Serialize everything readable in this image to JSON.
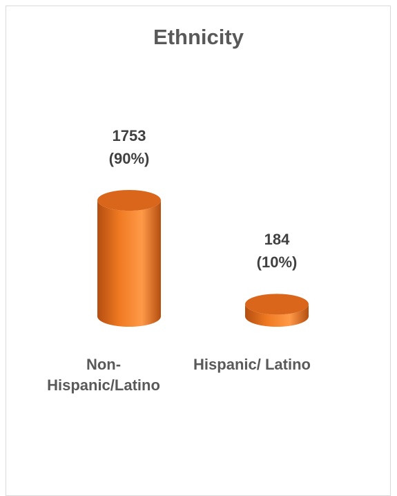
{
  "chart_data": {
    "type": "bar",
    "title": "Ethnicity",
    "categories": [
      "Non-\nHispanic/Latino",
      "Hispanic/ Latino"
    ],
    "values": [
      1753,
      184
    ],
    "data_labels": [
      "1753\n(90%)",
      "184\n(10%)"
    ],
    "bar_style": "3d-cylinder",
    "grid": false,
    "legend": "none",
    "colors": {
      "bar": "#f07a22",
      "bar_dark": "#b44e10",
      "bar_light": "#ff9a48",
      "top": "#d9661b"
    }
  }
}
